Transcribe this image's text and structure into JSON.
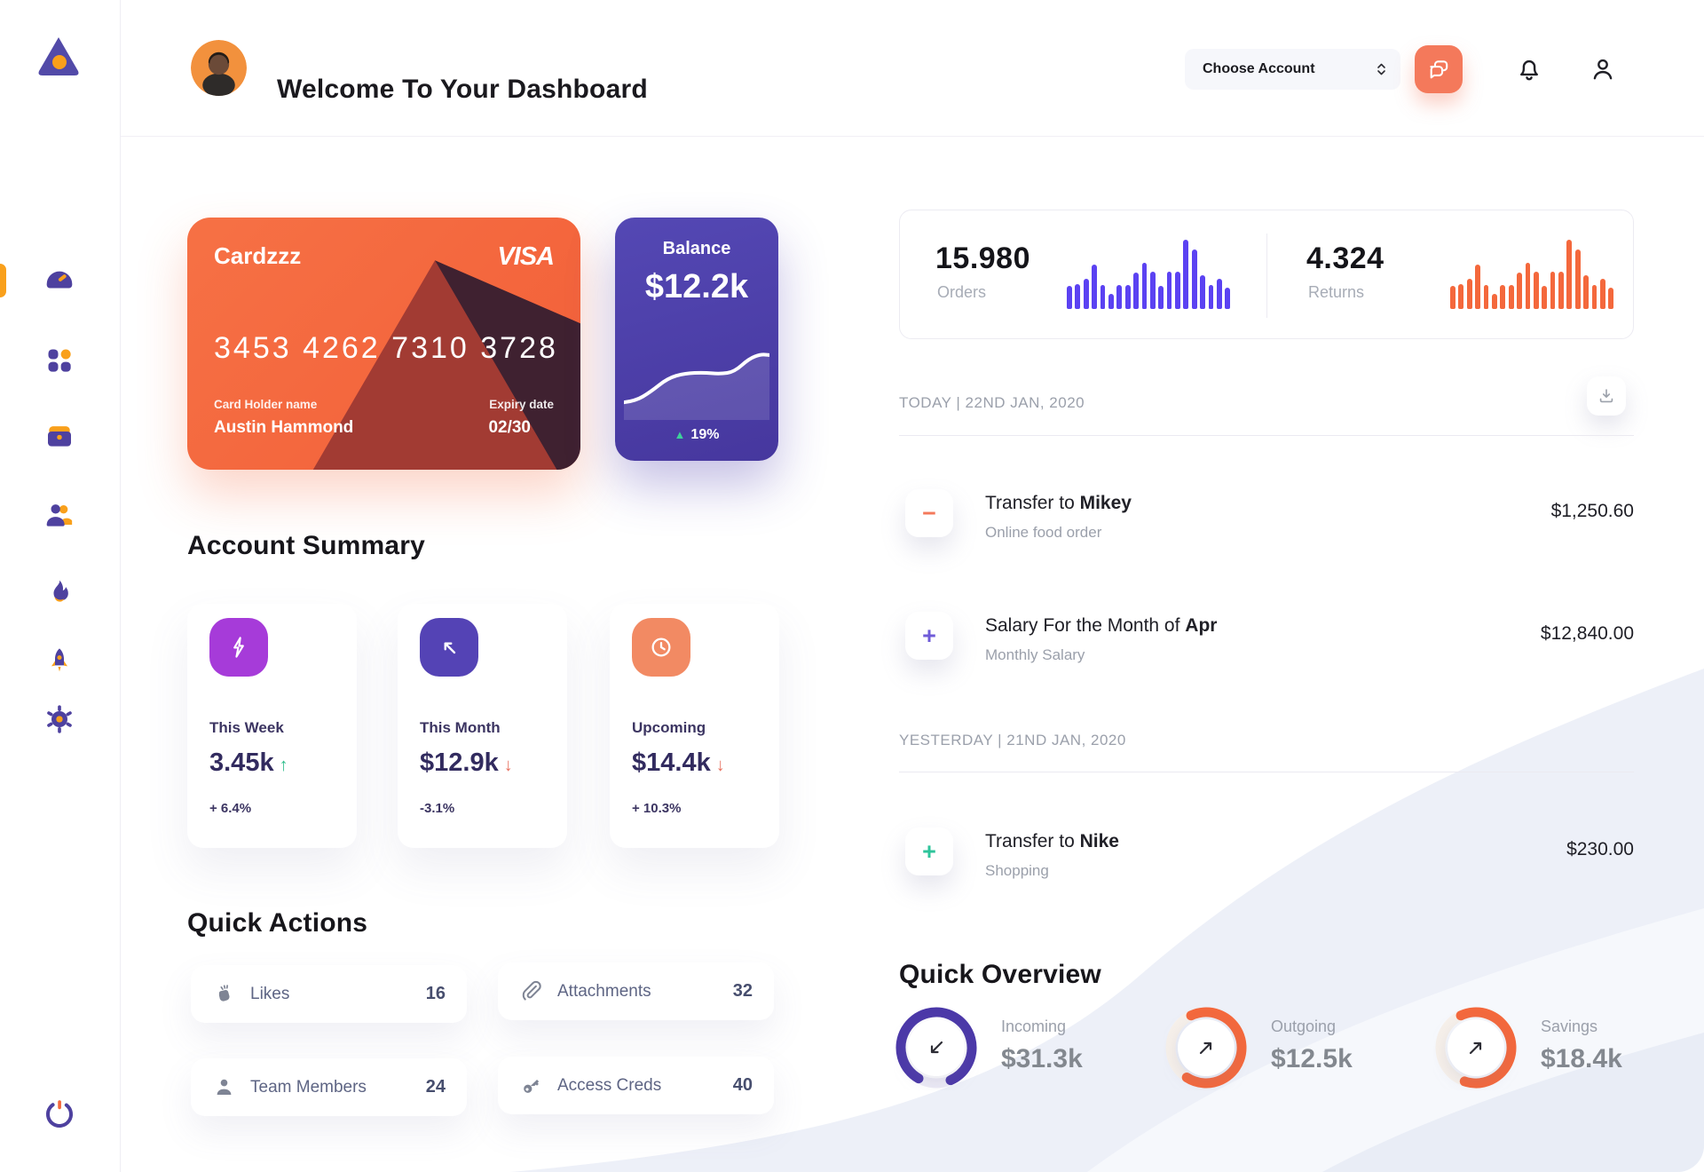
{
  "header": {
    "title": "Welcome To Your Dashboard",
    "account_selector": "Choose Account"
  },
  "sidebar": {
    "items": [
      "dashboard",
      "apps",
      "work",
      "team",
      "activity",
      "launch",
      "settings"
    ],
    "active_item": "dashboard"
  },
  "credit_card": {
    "name": "Cardzzz",
    "brand": "VISA",
    "number": "3453 4262 7310 3728",
    "holder_label": "Card Holder name",
    "holder_name": "Austin Hammond",
    "expiry_label": "Expiry date",
    "expiry": "02/30"
  },
  "balance_card": {
    "label": "Balance",
    "value": "$12.2k",
    "change": "19%"
  },
  "stats": {
    "orders": {
      "value": "15.980",
      "label": "Orders"
    },
    "returns": {
      "value": "4.324",
      "label": "Returns"
    }
  },
  "transactions": {
    "today_header": "TODAY | 22ND JAN, 2020",
    "yesterday_header": "YESTERDAY | 21ND JAN, 2020",
    "rows": [
      {
        "title_prefix": "Transfer to ",
        "title_bold": "Mikey",
        "subtitle": "Online food order",
        "amount": "$1,250.60",
        "sign": "minus",
        "sign_color": "#F4795B"
      },
      {
        "title_prefix": "Salary For the Month of ",
        "title_bold": "Apr",
        "subtitle": "Monthly Salary",
        "amount": "$12,840.00",
        "sign": "plus",
        "sign_color": "#6F5BD8"
      },
      {
        "title_prefix": "Transfer to ",
        "title_bold": "Nike",
        "subtitle": "Shopping",
        "amount": "$230.00",
        "sign": "plus",
        "sign_color": "#2EC49B"
      }
    ]
  },
  "account_summary": {
    "title": "Account Summary",
    "cards": [
      {
        "label": "This Week",
        "value": "3.45k",
        "arrow": "up",
        "arrow_color": "#2EBD8C",
        "delta": "+ 6.4%",
        "icon": "lightning-icon",
        "icon_bg": "#A63BD9"
      },
      {
        "label": "This Month",
        "value": "$12.9k",
        "arrow": "down",
        "arrow_color": "#E8705F",
        "delta": "-3.1%",
        "icon": "arrow-up-left-icon",
        "icon_bg": "#5443B5"
      },
      {
        "label": "Upcoming",
        "value": "$14.4k",
        "arrow": "down",
        "arrow_color": "#E8705F",
        "delta": "+ 10.3%",
        "icon": "clock-icon",
        "icon_bg": "#F28A63"
      }
    ]
  },
  "quick_actions": {
    "title": "Quick Actions",
    "items": [
      {
        "label": "Likes",
        "count": "16",
        "icon": "clap-icon"
      },
      {
        "label": "Attachments",
        "count": "32",
        "icon": "paperclip-icon"
      },
      {
        "label": "Team Members",
        "count": "24",
        "icon": "member-icon"
      },
      {
        "label": "Access Creds",
        "count": "40",
        "icon": "key-icon"
      }
    ]
  },
  "quick_overview": {
    "title": "Quick Overview",
    "items": [
      {
        "label": "Incoming",
        "value": "$31.3k",
        "pct": 85,
        "rotate": 120,
        "color": "#4B38A8",
        "track": "#EDEBF6",
        "arrow": "down-left"
      },
      {
        "label": "Outgoing",
        "value": "$12.5k",
        "pct": 66,
        "rotate": 245,
        "color": "#F4683C",
        "track": "#F6F0EA",
        "arrow": "up-right"
      },
      {
        "label": "Savings",
        "value": "$18.4k",
        "pct": 62,
        "rotate": 245,
        "color": "#F4683C",
        "track": "#F6F0EA",
        "arrow": "up-right"
      }
    ]
  },
  "chart_data": [
    {
      "type": "bar",
      "name": "orders_activity",
      "title": "Orders",
      "values": [
        33,
        36,
        44,
        64,
        34,
        22,
        34,
        34,
        53,
        67,
        54,
        33,
        54,
        54,
        100,
        86,
        49,
        34,
        43,
        31
      ],
      "color": "#5B42F2",
      "ylim": [
        0,
        100
      ]
    },
    {
      "type": "bar",
      "name": "returns_activity",
      "title": "Returns",
      "values": [
        33,
        36,
        44,
        64,
        34,
        22,
        34,
        34,
        53,
        67,
        54,
        33,
        54,
        54,
        100,
        86,
        49,
        34,
        43,
        31
      ],
      "color": "#F4683C",
      "ylim": [
        0,
        100
      ]
    },
    {
      "type": "line",
      "name": "balance_trend",
      "title": "Balance",
      "x": [
        0,
        8,
        18,
        30,
        42,
        55,
        66,
        76,
        86,
        94,
        100
      ],
      "values": [
        12,
        14,
        26,
        45,
        52,
        53,
        51,
        54,
        72,
        78,
        77
      ],
      "color": "#FFFFFF"
    },
    {
      "type": "donut",
      "name": "incoming",
      "label": "Incoming",
      "value_text": "$31.3k",
      "pct": 85,
      "color": "#4B38A8"
    },
    {
      "type": "donut",
      "name": "outgoing",
      "label": "Outgoing",
      "value_text": "$12.5k",
      "pct": 66,
      "color": "#F4683C"
    },
    {
      "type": "donut",
      "name": "savings",
      "label": "Savings",
      "value_text": "$18.4k",
      "pct": 62,
      "color": "#F4683C"
    }
  ]
}
